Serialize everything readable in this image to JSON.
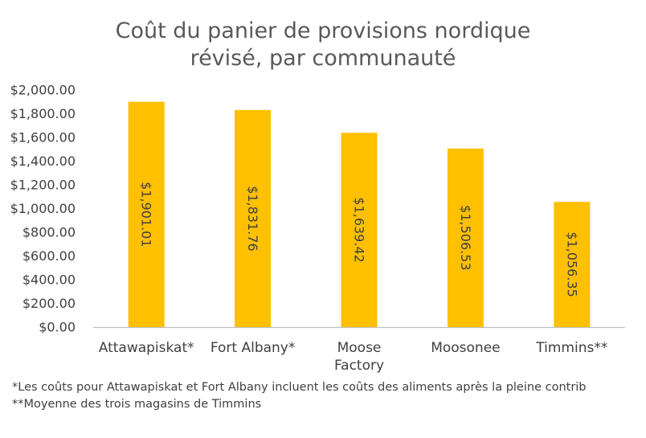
{
  "chart_data": {
    "type": "bar",
    "title_lines": [
      "Coût du panier de provisions nordique",
      "révisé, par communauté"
    ],
    "categories": [
      [
        "Attawapiskat*"
      ],
      [
        "Fort Albany*"
      ],
      [
        "Moose",
        "Factory"
      ],
      [
        "Moosonee"
      ],
      [
        "Timmins**"
      ]
    ],
    "values": [
      1901.01,
      1831.76,
      1639.42,
      1506.53,
      1056.35
    ],
    "data_labels": [
      "$1,901.01",
      "$1,831.76",
      "$1,639.42",
      "$1,506.53",
      "$1,056.35"
    ],
    "y_ticks": [
      "$0.00",
      "$200.00",
      "$400.00",
      "$600.00",
      "$800.00",
      "$1,000.00",
      "$1,200.00",
      "$1,400.00",
      "$1,600.00",
      "$1,800.00",
      "$2,000.00"
    ],
    "ylim": [
      0,
      2000
    ],
    "grid": false,
    "legend": "none",
    "bar_color": "#FFC000",
    "axis_color": "#BFBFBF"
  },
  "footnotes": [
    "*Les coûts pour Attawapiskat et Fort Albany incluent les coûts des aliments après la pleine contrib",
    "**Moyenne des trois magasins de Timmins"
  ]
}
